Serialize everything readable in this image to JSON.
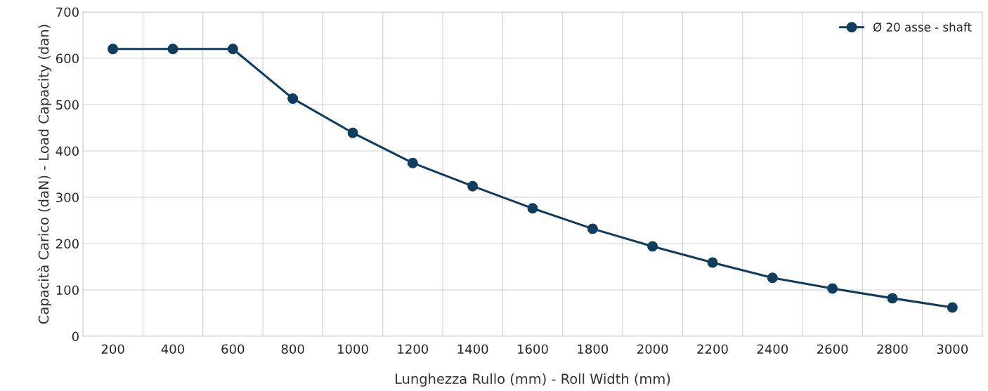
{
  "chart_data": {
    "type": "line",
    "xlabel": "Lunghezza Rullo (mm) - Roll Width (mm)",
    "ylabel": "Capacità Carico (daN) - Load Capacity (dan)",
    "categories": [
      "200",
      "400",
      "600",
      "800",
      "1000",
      "1200",
      "1400",
      "1600",
      "1800",
      "2000",
      "2200",
      "2400",
      "2600",
      "2800",
      "3000"
    ],
    "series": [
      {
        "name": "Ø 20 asse - shaft",
        "color": "#0f3d5f",
        "values": [
          620,
          620,
          620,
          513,
          439,
          374,
          324,
          276,
          232,
          194,
          159,
          126,
          103,
          82,
          62
        ]
      }
    ],
    "ylim": [
      0,
      700
    ],
    "yticks": [
      0,
      100,
      200,
      300,
      400,
      500,
      600,
      700
    ],
    "grid": true,
    "legend": "top right",
    "marker": "circle",
    "line_style": "solid"
  }
}
